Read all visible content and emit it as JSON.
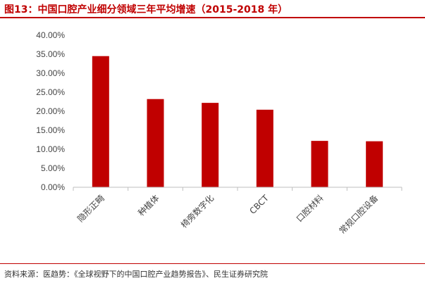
{
  "header": {
    "title": "图13：中国口腔产业细分领域三年平均增速（2015-2018 年）"
  },
  "footer": {
    "source": "资料来源：医趋势：《全球视野下的中国口腔产业趋势报告》、民生证券研究院"
  },
  "chart_data": {
    "type": "bar",
    "title": "图13：中国口腔产业细分领域三年平均增速（2015-2018 年）",
    "xlabel": "",
    "ylabel": "",
    "categories": [
      "隐形正畸",
      "种植体",
      "椅旁数字化",
      "CBCT",
      "口腔材料",
      "常规口腔设备"
    ],
    "values": [
      34.5,
      23.2,
      22.2,
      20.4,
      12.2,
      12.1
    ],
    "ylim": [
      0,
      40
    ],
    "yticks": [
      0,
      5,
      10,
      15,
      20,
      25,
      30,
      35,
      40
    ],
    "ytick_labels": [
      "0.00%",
      "5.00%",
      "10.00%",
      "15.00%",
      "20.00%",
      "25.00%",
      "30.00%",
      "35.00%",
      "40.00%"
    ],
    "grid": false,
    "legend": "none",
    "bar_color": "#c00000"
  }
}
